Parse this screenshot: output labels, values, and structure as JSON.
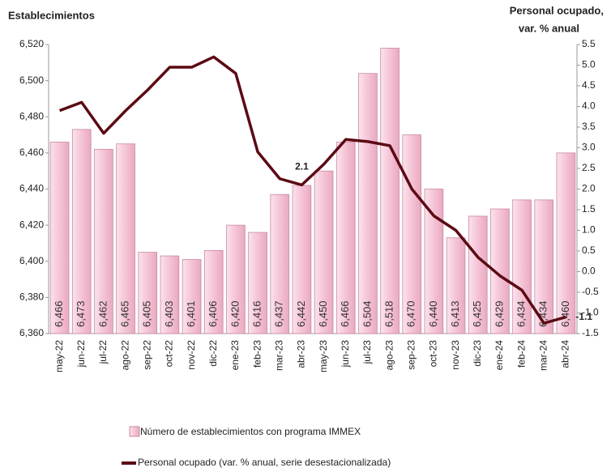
{
  "chart_data": {
    "type": "bar_line",
    "ylabel": "Establecimientos",
    "y2label": [
      "Personal ocupado,",
      "var.  % anual"
    ],
    "categories": [
      "may-22",
      "jun-22",
      "jul-22",
      "ago-22",
      "sep-22",
      "oct-22",
      "nov-22",
      "dic-22",
      "ene-23",
      "feb-23",
      "mar-23",
      "abr-23",
      "may-23",
      "jun-23",
      "jul-23",
      "ago-23",
      "sep-23",
      "oct-23",
      "nov-23",
      "dic-23",
      "ene-24",
      "feb-24",
      "mar-24",
      "abr-24"
    ],
    "series": [
      {
        "name": "Número de establecimientos con programa IMMEX",
        "color": "#f5c3d6",
        "type": "bar",
        "values": [
          6466,
          6473,
          6462,
          6465,
          6405,
          6403,
          6401,
          6406,
          6420,
          6416,
          6437,
          6442,
          6450,
          6466,
          6504,
          6518,
          6470,
          6440,
          6413,
          6425,
          6429,
          6434,
          6434,
          6460
        ],
        "value_labels": [
          "6,466",
          "6,473",
          "6,462",
          "6,465",
          "6,405",
          "6,403",
          "6,401",
          "6,406",
          "6,420",
          "6,416",
          "6,437",
          "6,442",
          "6,450",
          "6,466",
          "6,504",
          "6,518",
          "6,470",
          "6,440",
          "6,413",
          "6,425",
          "6,429",
          "6,434",
          "6,434",
          "6,460"
        ]
      },
      {
        "name": "Personal ocupado (var. % anual, serie desestacionalizada)",
        "color": "#5c0a14",
        "type": "line",
        "axis": "y2",
        "values": [
          3.9,
          4.1,
          3.35,
          3.9,
          4.4,
          4.95,
          4.95,
          5.2,
          4.8,
          2.9,
          2.25,
          2.1,
          2.6,
          3.2,
          3.15,
          3.05,
          2.0,
          1.35,
          1.0,
          0.35,
          -0.1,
          -0.45,
          -1.25,
          -1.1
        ],
        "value_labels": [
          null,
          null,
          null,
          null,
          null,
          null,
          null,
          null,
          null,
          null,
          null,
          "2.1",
          null,
          null,
          null,
          null,
          null,
          null,
          null,
          null,
          null,
          null,
          null,
          "-1.1"
        ]
      }
    ],
    "ylim": [
      6360,
      6520
    ],
    "yticks": [
      {
        "value": 6360,
        "label": "6,360"
      },
      {
        "value": 6380,
        "label": "6,380"
      },
      {
        "value": 6400,
        "label": "6,400"
      },
      {
        "value": 6420,
        "label": "6,420"
      },
      {
        "value": 6440,
        "label": "6,440"
      },
      {
        "value": 6460,
        "label": "6,460"
      },
      {
        "value": 6480,
        "label": "6,480"
      },
      {
        "value": 6500,
        "label": "6,500"
      },
      {
        "value": 6520,
        "label": "6,520"
      }
    ],
    "y2lim": [
      -1.5,
      5.5
    ],
    "y2ticks": [
      -1.5,
      {
        "value": -1,
        "label": "-1.0"
      },
      -0.5,
      {
        "value": 0,
        "label": "0.0"
      },
      0.5,
      {
        "value": 1,
        "label": "1.0"
      },
      1.5,
      {
        "value": 2,
        "label": "2.0"
      },
      2.5,
      {
        "value": 3,
        "label": "3.0"
      },
      3.5,
      {
        "value": 4,
        "label": "4.0"
      },
      4.5,
      {
        "value": 5,
        "label": "5.0"
      },
      5.5
    ]
  }
}
